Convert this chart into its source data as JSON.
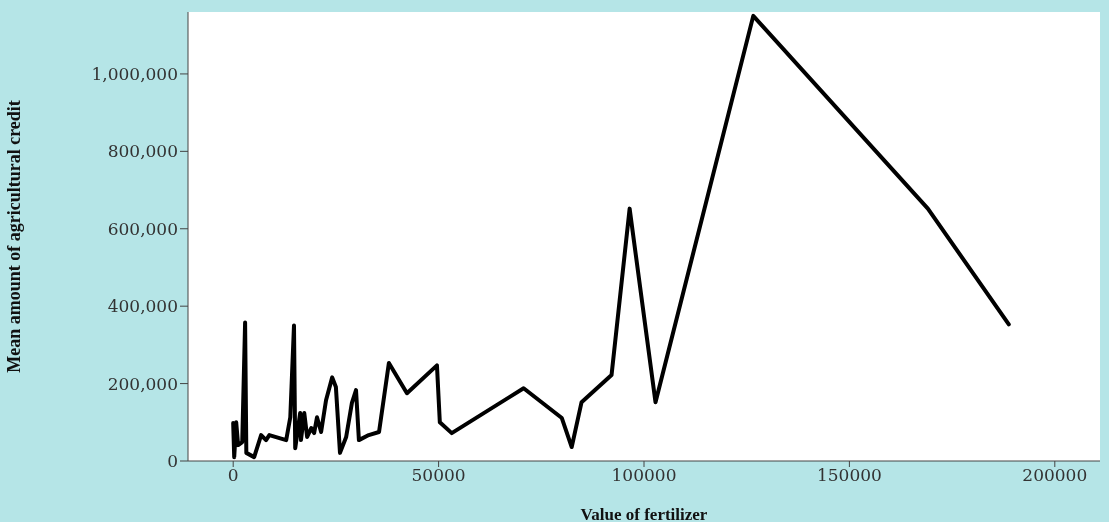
{
  "chart_data": {
    "type": "line",
    "xlabel": "Value of fertilizer",
    "ylabel": "Mean amount of agricultural credit",
    "x": [
      0,
      250,
      730,
      1200,
      2200,
      2900,
      3200,
      5100,
      6800,
      8000,
      8800,
      12900,
      13900,
      14800,
      15100,
      16300,
      16500,
      17300,
      18000,
      19000,
      19700,
      20400,
      21400,
      22600,
      24100,
      25000,
      26000,
      27500,
      28900,
      29900,
      30600,
      33000,
      35500,
      37900,
      42300,
      49600,
      50300,
      53200,
      70700,
      80000,
      82400,
      84800,
      92100,
      96500,
      102800,
      126600,
      169100,
      188800
    ],
    "series": [
      {
        "color": "#000000",
        "values": [
          98000,
          10000,
          100000,
          41000,
          49000,
          358000,
          21000,
          10000,
          67000,
          54000,
          67000,
          54000,
          113000,
          350000,
          33000,
          124000,
          54000,
          124000,
          62000,
          85000,
          72000,
          113000,
          75000,
          157000,
          216000,
          191000,
          21000,
          62000,
          150000,
          183000,
          54000,
          67000,
          75000,
          253000,
          175000,
          247000,
          100000,
          72000,
          188000,
          111000,
          36000,
          152000,
          222000,
          652000,
          152000,
          1150000,
          652000,
          353000
        ]
      }
    ],
    "xlim": [
      -11000,
      211000
    ],
    "ylim": [
      0,
      1160000
    ],
    "xticks": [
      0,
      50000,
      100000,
      150000,
      200000
    ],
    "yticks": [
      {
        "value": 0,
        "label": "0"
      },
      {
        "value": 200000,
        "label": "200,000"
      },
      {
        "value": 400000,
        "label": "400,000"
      },
      {
        "value": 600000,
        "label": "600,000"
      },
      {
        "value": 800000,
        "label": "800,000"
      },
      {
        "value": 1000000,
        "label": "1,000,000"
      }
    ],
    "marker": "none",
    "line_style": "solid",
    "grid": false,
    "legend": false
  }
}
